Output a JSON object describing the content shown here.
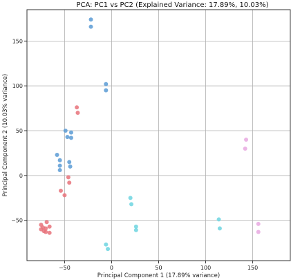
{
  "chart_data": {
    "type": "scatter",
    "title": "PCA: PC1 vs PC2 (Explained Variance: 17.89%, 10.03%)",
    "xlabel": "Principal Component 1 (17.89% variance)",
    "ylabel": "Principal Component 2 (10.03% variance)",
    "xlim": [
      -90,
      190
    ],
    "ylim": [
      -95,
      185
    ],
    "xticks": [
      -50,
      0,
      50,
      100,
      150
    ],
    "yticks": [
      -50,
      0,
      50,
      100,
      150
    ],
    "grid": true,
    "legend": "none",
    "series": [
      {
        "color": "#5b9bd5",
        "points": [
          [
            -22,
            174
          ],
          [
            -22,
            166
          ],
          [
            -6,
            102
          ],
          [
            -6,
            95
          ],
          [
            -49,
            50
          ],
          [
            -43,
            48
          ],
          [
            -47,
            43
          ],
          [
            -43,
            42
          ],
          [
            -58,
            23
          ],
          [
            -55,
            17
          ],
          [
            -45,
            15
          ],
          [
            -55,
            11
          ],
          [
            -44,
            10
          ],
          [
            -55,
            6
          ]
        ]
      },
      {
        "color": "#e8727a",
        "points": [
          [
            -37,
            76
          ],
          [
            -36,
            70
          ],
          [
            -46,
            -2
          ],
          [
            -45,
            -8
          ],
          [
            -54,
            -17
          ],
          [
            -50,
            -22
          ],
          [
            -69,
            -52
          ],
          [
            -75,
            -55
          ],
          [
            -66,
            -57
          ],
          [
            -73,
            -58
          ],
          [
            -75,
            -60
          ],
          [
            -70,
            -59
          ],
          [
            -72,
            -62
          ],
          [
            -70,
            -63
          ],
          [
            -66,
            -64
          ]
        ]
      },
      {
        "color": "#6dd5e0",
        "points": [
          [
            20,
            -25
          ],
          [
            21,
            -32
          ],
          [
            26,
            -57
          ],
          [
            26,
            -61
          ],
          [
            -6,
            -77
          ],
          [
            -4,
            -82
          ],
          [
            114,
            -49
          ],
          [
            115,
            -59
          ]
        ]
      },
      {
        "color": "#e8a8e0",
        "points": [
          [
            143,
            40
          ],
          [
            142,
            30
          ],
          [
            156,
            -54
          ],
          [
            156,
            -63
          ]
        ]
      }
    ]
  }
}
